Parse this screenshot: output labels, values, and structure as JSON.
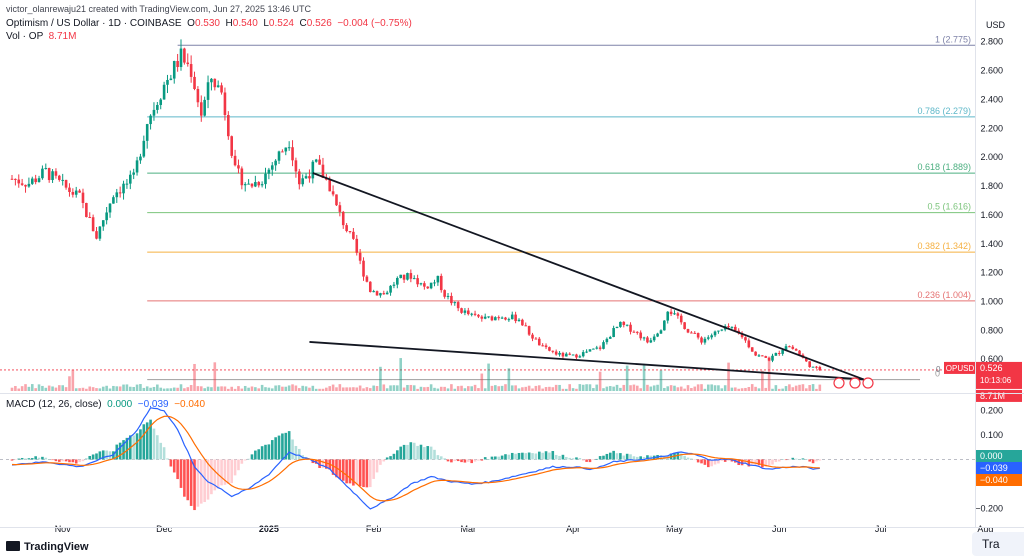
{
  "header": {
    "credit": "victor_olanrewaju21 created with TradingView.com, Jun 27, 2025 13:46 UTC",
    "symbol_line": "Optimism / US Dollar · 1D · COINBASE",
    "open_label": "O",
    "open_value": "0.530",
    "high_label": "H",
    "high_value": "0.540",
    "low_label": "L",
    "low_value": "0.524",
    "close_label": "C",
    "close_value": "0.526",
    "change": "−0.004 (−0.75%)",
    "volume_label": "Vol · OP",
    "volume_value": "8.71M",
    "currency": "USD"
  },
  "macd_header": {
    "title": "MACD (12, 26, close)",
    "macd_hist": "0.000",
    "macd_line": "−0.039",
    "signal_line": "−0.040"
  },
  "price_badge": {
    "symbol": "OPUSD",
    "price": "0.526",
    "countdown": "10:13:06",
    "volume": "8.71M",
    "zero_label": "0"
  },
  "macd_badges": {
    "hist": "0.000",
    "macd": "−0.039",
    "signal": "−0.040"
  },
  "brand": {
    "name": "TradingView",
    "trade_button": "Tra"
  },
  "colors": {
    "up": "#089981",
    "down": "#f23645",
    "macd_line": "#2962ff",
    "signal_line": "#ff6d00",
    "fib_1": "#7e82a8",
    "fib_0786": "#5fb8c9",
    "fib_0618": "#4caf80",
    "fib_05": "#7cc47c",
    "fib_0382": "#f5b041",
    "fib_0236": "#e57373",
    "fib_0": "#9e9e9e"
  },
  "chart_data": {
    "type": "candlestick",
    "price_axis": {
      "ylim": [
        0.38,
        2.95
      ],
      "ticks": [
        "0.600",
        "0.800",
        "1.000",
        "1.200",
        "1.400",
        "1.600",
        "1.800",
        "2.000",
        "2.200",
        "2.400",
        "2.600",
        "2.800"
      ]
    },
    "macd_axis": {
      "ylim": [
        -0.23,
        0.25
      ],
      "ticks": [
        "0.200",
        "0.100",
        "−0.200"
      ]
    },
    "x_ticks": [
      {
        "label": "Nov",
        "day": 15
      },
      {
        "label": "Dec",
        "day": 45
      },
      {
        "label": "2025",
        "day": 76
      },
      {
        "label": "Feb",
        "day": 107
      },
      {
        "label": "Mar",
        "day": 135
      },
      {
        "label": "Apr",
        "day": 166
      },
      {
        "label": "May",
        "day": 196
      },
      {
        "label": "Jun",
        "day": 227
      },
      {
        "label": "Jul",
        "day": 257
      },
      {
        "label": "Aug",
        "day": 288
      }
    ],
    "fib_levels": [
      {
        "ratio": "1",
        "price": 2.775,
        "label": "1 (2.775)"
      },
      {
        "ratio": "0.786",
        "price": 2.279,
        "label": "0.786 (2.279)"
      },
      {
        "ratio": "0.618",
        "price": 1.889,
        "label": "0.618 (1.889)"
      },
      {
        "ratio": "0.5",
        "price": 1.616,
        "label": "0.5 (1.616)"
      },
      {
        "ratio": "0.382",
        "price": 1.342,
        "label": "0.382 (1.342)"
      },
      {
        "ratio": "0.236",
        "price": 1.004,
        "label": "0.236 (1.004)"
      },
      {
        "ratio": "0",
        "price": 0.459,
        "label": "0"
      }
    ],
    "trendlines": [
      {
        "name": "upper",
        "from": {
          "day": 89,
          "price": 1.89
        },
        "to": {
          "day": 252,
          "price": 0.46
        }
      },
      {
        "name": "lower",
        "from": {
          "day": 88,
          "price": 0.72
        },
        "to": {
          "day": 252,
          "price": 0.46
        }
      }
    ],
    "price_anchors": [
      [
        0,
        1.85
      ],
      [
        5,
        1.82
      ],
      [
        10,
        1.9
      ],
      [
        15,
        1.8
      ],
      [
        20,
        1.72
      ],
      [
        25,
        1.45
      ],
      [
        30,
        1.75
      ],
      [
        36,
        1.85
      ],
      [
        40,
        2.25
      ],
      [
        45,
        2.5
      ],
      [
        50,
        2.7
      ],
      [
        53,
        2.6
      ],
      [
        56,
        2.3
      ],
      [
        59,
        2.55
      ],
      [
        62,
        2.45
      ],
      [
        64,
        2.2
      ],
      [
        66,
        1.9
      ],
      [
        70,
        1.8
      ],
      [
        74,
        1.85
      ],
      [
        77,
        1.95
      ],
      [
        80,
        2.05
      ],
      [
        82,
        2.12
      ],
      [
        85,
        1.82
      ],
      [
        88,
        1.9
      ],
      [
        90,
        1.95
      ],
      [
        94,
        1.8
      ],
      [
        96,
        1.65
      ],
      [
        99,
        1.5
      ],
      [
        101,
        1.4
      ],
      [
        104,
        1.2
      ],
      [
        106,
        1.08
      ],
      [
        110,
        1.05
      ],
      [
        114,
        1.15
      ],
      [
        118,
        1.18
      ],
      [
        122,
        1.1
      ],
      [
        126,
        1.15
      ],
      [
        128,
        1.05
      ],
      [
        132,
        0.95
      ],
      [
        136,
        0.9
      ],
      [
        140,
        0.88
      ],
      [
        145,
        0.9
      ],
      [
        150,
        0.88
      ],
      [
        153,
        0.78
      ],
      [
        157,
        0.68
      ],
      [
        162,
        0.63
      ],
      [
        166,
        0.62
      ],
      [
        170,
        0.65
      ],
      [
        174,
        0.68
      ],
      [
        178,
        0.8
      ],
      [
        180,
        0.84
      ],
      [
        184,
        0.8
      ],
      [
        188,
        0.72
      ],
      [
        192,
        0.82
      ],
      [
        194,
        0.95
      ],
      [
        197,
        0.88
      ],
      [
        200,
        0.8
      ],
      [
        204,
        0.73
      ],
      [
        208,
        0.78
      ],
      [
        212,
        0.82
      ],
      [
        216,
        0.76
      ],
      [
        220,
        0.63
      ],
      [
        224,
        0.6
      ],
      [
        227,
        0.65
      ],
      [
        229,
        0.7
      ],
      [
        232,
        0.66
      ],
      [
        235,
        0.58
      ],
      [
        237,
        0.54
      ],
      [
        239,
        0.53
      ]
    ],
    "macd_anchors": [
      [
        0,
        -0.02
      ],
      [
        10,
        -0.01
      ],
      [
        20,
        -0.03
      ],
      [
        30,
        0.02
      ],
      [
        37,
        0.12
      ],
      [
        41,
        0.21
      ],
      [
        45,
        0.2
      ],
      [
        49,
        0.12
      ],
      [
        54,
        -0.03
      ],
      [
        58,
        -0.09
      ],
      [
        62,
        -0.12
      ],
      [
        65,
        -0.15
      ],
      [
        70,
        -0.12
      ],
      [
        76,
        -0.06
      ],
      [
        82,
        0.03
      ],
      [
        88,
        0.0
      ],
      [
        94,
        -0.04
      ],
      [
        100,
        -0.12
      ],
      [
        106,
        -0.2
      ],
      [
        112,
        -0.16
      ],
      [
        118,
        -0.1
      ],
      [
        124,
        -0.07
      ],
      [
        130,
        -0.09
      ],
      [
        136,
        -0.1
      ],
      [
        142,
        -0.09
      ],
      [
        148,
        -0.07
      ],
      [
        154,
        -0.05
      ],
      [
        160,
        -0.03
      ],
      [
        166,
        -0.03
      ],
      [
        172,
        -0.04
      ],
      [
        178,
        -0.01
      ],
      [
        186,
        0.0
      ],
      [
        192,
        0.01
      ],
      [
        198,
        0.03
      ],
      [
        202,
        0.02
      ],
      [
        206,
        0.0
      ],
      [
        212,
        0.0
      ],
      [
        218,
        -0.02
      ],
      [
        224,
        -0.04
      ],
      [
        230,
        -0.03
      ],
      [
        234,
        -0.03
      ],
      [
        238,
        -0.04
      ],
      [
        239,
        -0.039
      ]
    ],
    "series": [
      {
        "name": "MACD",
        "color": "#2962ff"
      },
      {
        "name": "Signal",
        "color": "#ff6d00"
      },
      {
        "name": "Histogram"
      }
    ]
  }
}
